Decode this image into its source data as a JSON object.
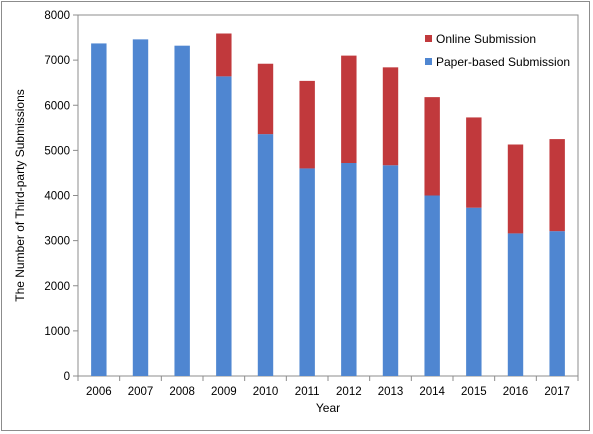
{
  "chart_data": {
    "type": "bar",
    "stacked": true,
    "title": "",
    "xlabel": "Year",
    "ylabel": "The Number of Third-party Submissions",
    "ylim": [
      0,
      8000
    ],
    "yticks": [
      0,
      1000,
      2000,
      3000,
      4000,
      5000,
      6000,
      7000,
      8000
    ],
    "grid": false,
    "legend_position": "top-right",
    "categories": [
      "2006",
      "2007",
      "2008",
      "2009",
      "2010",
      "2011",
      "2012",
      "2013",
      "2014",
      "2015",
      "2016",
      "2017"
    ],
    "series": [
      {
        "name": "Paper-based Submission",
        "color": "#4f86d1",
        "values": [
          7370,
          7460,
          7320,
          6640,
          5360,
          4600,
          4720,
          4670,
          4000,
          3730,
          3160,
          3210
        ]
      },
      {
        "name": "Online Submission",
        "color": "#c1393c",
        "values": [
          0,
          0,
          0,
          950,
          1560,
          1940,
          2380,
          2170,
          2180,
          2000,
          1970,
          2040
        ]
      }
    ],
    "legend_order": [
      "Online Submission",
      "Paper-based Submission"
    ]
  }
}
